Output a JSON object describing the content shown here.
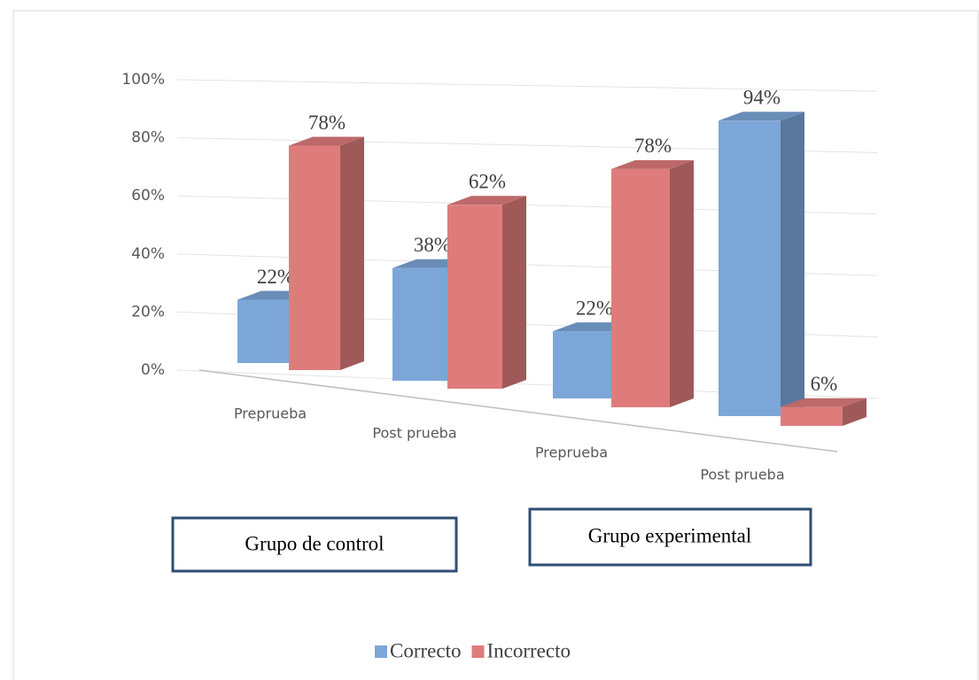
{
  "chart_data": {
    "type": "bar3d",
    "categories": [
      "Preprueba",
      "Post prueba",
      "Preprueba",
      "Post prueba"
    ],
    "series": [
      {
        "name": "Correcto",
        "color": "#7da6d8",
        "values": [
          22,
          38,
          22,
          94
        ],
        "value_labels": [
          "22%",
          "38%",
          "22%",
          "94%"
        ]
      },
      {
        "name": "Incorrecto",
        "color": "#de7c7c",
        "values": [
          78,
          62,
          78,
          6
        ],
        "value_labels": [
          "78%",
          "62%",
          "78%",
          "6%"
        ]
      }
    ],
    "ylim": [
      0,
      100
    ],
    "yticks": [
      {
        "value": 0,
        "label": "0%"
      },
      {
        "value": 20,
        "label": "20%"
      },
      {
        "value": 40,
        "label": "40%"
      },
      {
        "value": 60,
        "label": "60%"
      },
      {
        "value": 80,
        "label": "80%"
      },
      {
        "value": 100,
        "label": "100%"
      }
    ],
    "grid": true,
    "annotations": [
      "Grupo de control",
      "Grupo experimental"
    ],
    "legend": "bottom"
  }
}
